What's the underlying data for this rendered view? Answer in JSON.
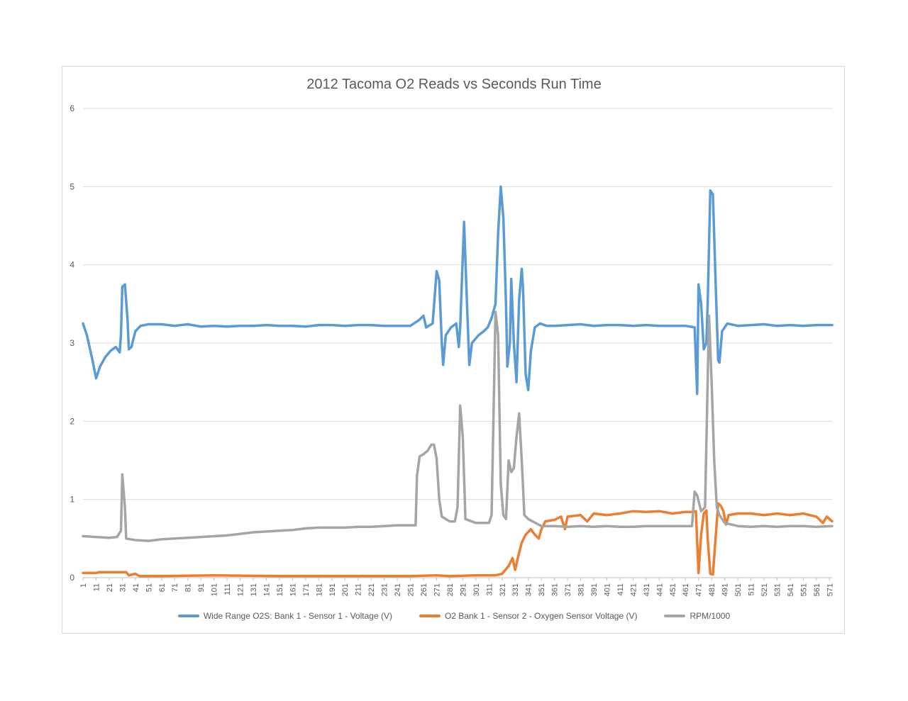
{
  "chart_data": {
    "type": "line",
    "title": "2012 Tacoma O2 Reads vs Seconds Run Time",
    "xlabel": "",
    "ylabel": "",
    "ylim": [
      0,
      6
    ],
    "yticks": [
      "0",
      "1",
      "2",
      "3",
      "4",
      "5",
      "6"
    ],
    "xticks": [
      "1",
      "11",
      "21",
      "31",
      "41",
      "51",
      "61",
      "71",
      "81",
      "91",
      "101",
      "111",
      "121",
      "131",
      "141",
      "151",
      "161",
      "171",
      "181",
      "191",
      "201",
      "211",
      "221",
      "231",
      "241",
      "251",
      "261",
      "271",
      "281",
      "291",
      "301",
      "311",
      "321",
      "331",
      "341",
      "351",
      "361",
      "371",
      "381",
      "391",
      "401",
      "411",
      "421",
      "431",
      "441",
      "451",
      "461",
      "471",
      "481",
      "491",
      "501",
      "511",
      "521",
      "531",
      "541",
      "551",
      "561",
      "571"
    ],
    "xlim": [
      1,
      573
    ],
    "grid": true,
    "legend_position": "bottom",
    "series": [
      {
        "name": "Wide Range O2S: Bank 1 - Sensor 1 - Voltage (V)",
        "color": "#5b9bd5",
        "points": [
          [
            1,
            3.25
          ],
          [
            4,
            3.1
          ],
          [
            8,
            2.8
          ],
          [
            11,
            2.55
          ],
          [
            14,
            2.7
          ],
          [
            18,
            2.82
          ],
          [
            22,
            2.9
          ],
          [
            26,
            2.95
          ],
          [
            29,
            2.88
          ],
          [
            30,
            3.1
          ],
          [
            31,
            3.72
          ],
          [
            33,
            3.75
          ],
          [
            35,
            3.3
          ],
          [
            36,
            2.92
          ],
          [
            38,
            2.95
          ],
          [
            41,
            3.15
          ],
          [
            45,
            3.22
          ],
          [
            51,
            3.24
          ],
          [
            61,
            3.24
          ],
          [
            71,
            3.22
          ],
          [
            81,
            3.24
          ],
          [
            91,
            3.21
          ],
          [
            101,
            3.22
          ],
          [
            111,
            3.21
          ],
          [
            121,
            3.22
          ],
          [
            131,
            3.22
          ],
          [
            141,
            3.23
          ],
          [
            151,
            3.22
          ],
          [
            161,
            3.22
          ],
          [
            171,
            3.21
          ],
          [
            181,
            3.23
          ],
          [
            191,
            3.23
          ],
          [
            201,
            3.22
          ],
          [
            211,
            3.23
          ],
          [
            221,
            3.23
          ],
          [
            231,
            3.22
          ],
          [
            241,
            3.22
          ],
          [
            251,
            3.22
          ],
          [
            258,
            3.3
          ],
          [
            261,
            3.35
          ],
          [
            263,
            3.2
          ],
          [
            268,
            3.25
          ],
          [
            271,
            3.92
          ],
          [
            273,
            3.8
          ],
          [
            275,
            3.0
          ],
          [
            276,
            2.72
          ],
          [
            278,
            3.1
          ],
          [
            282,
            3.2
          ],
          [
            286,
            3.25
          ],
          [
            288,
            2.95
          ],
          [
            289,
            3.2
          ],
          [
            292,
            4.55
          ],
          [
            294,
            3.6
          ],
          [
            296,
            2.72
          ],
          [
            298,
            3.0
          ],
          [
            303,
            3.1
          ],
          [
            307,
            3.15
          ],
          [
            310,
            3.2
          ],
          [
            313,
            3.32
          ],
          [
            316,
            3.5
          ],
          [
            318,
            4.4
          ],
          [
            320,
            5.0
          ],
          [
            322,
            4.6
          ],
          [
            324,
            3.5
          ],
          [
            325,
            2.7
          ],
          [
            327,
            3.0
          ],
          [
            328,
            3.82
          ],
          [
            330,
            3.0
          ],
          [
            332,
            2.5
          ],
          [
            334,
            3.55
          ],
          [
            336,
            3.95
          ],
          [
            337,
            3.7
          ],
          [
            339,
            2.6
          ],
          [
            341,
            2.4
          ],
          [
            343,
            2.9
          ],
          [
            346,
            3.2
          ],
          [
            350,
            3.25
          ],
          [
            355,
            3.22
          ],
          [
            361,
            3.22
          ],
          [
            371,
            3.23
          ],
          [
            381,
            3.24
          ],
          [
            391,
            3.22
          ],
          [
            401,
            3.23
          ],
          [
            411,
            3.23
          ],
          [
            421,
            3.22
          ],
          [
            431,
            3.23
          ],
          [
            441,
            3.22
          ],
          [
            451,
            3.22
          ],
          [
            461,
            3.22
          ],
          [
            468,
            3.2
          ],
          [
            470,
            2.35
          ],
          [
            471,
            3.75
          ],
          [
            473,
            3.5
          ],
          [
            475,
            2.92
          ],
          [
            477,
            3.0
          ],
          [
            478,
            3.5
          ],
          [
            480,
            4.95
          ],
          [
            482,
            4.9
          ],
          [
            484,
            3.8
          ],
          [
            486,
            2.78
          ],
          [
            487,
            2.75
          ],
          [
            489,
            3.15
          ],
          [
            493,
            3.25
          ],
          [
            501,
            3.22
          ],
          [
            511,
            3.23
          ],
          [
            521,
            3.24
          ],
          [
            531,
            3.22
          ],
          [
            541,
            3.23
          ],
          [
            551,
            3.22
          ],
          [
            561,
            3.23
          ],
          [
            573,
            3.23
          ]
        ]
      },
      {
        "name": "O2 Bank 1 - Sensor 2 - Oxygen Sensor Voltage (V)",
        "color": "#ed7d31",
        "points": [
          [
            1,
            0.06
          ],
          [
            11,
            0.06
          ],
          [
            13,
            0.07
          ],
          [
            21,
            0.07
          ],
          [
            31,
            0.07
          ],
          [
            34,
            0.07
          ],
          [
            36,
            0.03
          ],
          [
            41,
            0.05
          ],
          [
            44,
            0.02
          ],
          [
            51,
            0.02
          ],
          [
            61,
            0.02
          ],
          [
            101,
            0.03
          ],
          [
            151,
            0.02
          ],
          [
            201,
            0.02
          ],
          [
            251,
            0.02
          ],
          [
            271,
            0.03
          ],
          [
            281,
            0.02
          ],
          [
            301,
            0.03
          ],
          [
            311,
            0.03
          ],
          [
            316,
            0.03
          ],
          [
            321,
            0.05
          ],
          [
            326,
            0.15
          ],
          [
            329,
            0.25
          ],
          [
            331,
            0.1
          ],
          [
            333,
            0.25
          ],
          [
            336,
            0.45
          ],
          [
            339,
            0.55
          ],
          [
            343,
            0.62
          ],
          [
            346,
            0.55
          ],
          [
            349,
            0.5
          ],
          [
            351,
            0.62
          ],
          [
            354,
            0.72
          ],
          [
            361,
            0.74
          ],
          [
            366,
            0.78
          ],
          [
            369,
            0.62
          ],
          [
            371,
            0.78
          ],
          [
            381,
            0.8
          ],
          [
            386,
            0.72
          ],
          [
            391,
            0.82
          ],
          [
            401,
            0.8
          ],
          [
            411,
            0.82
          ],
          [
            421,
            0.85
          ],
          [
            431,
            0.84
          ],
          [
            441,
            0.85
          ],
          [
            451,
            0.82
          ],
          [
            461,
            0.84
          ],
          [
            466,
            0.84
          ],
          [
            469,
            0.85
          ],
          [
            471,
            0.06
          ],
          [
            473,
            0.55
          ],
          [
            475,
            0.82
          ],
          [
            477,
            0.86
          ],
          [
            478,
            0.5
          ],
          [
            480,
            0.05
          ],
          [
            482,
            0.04
          ],
          [
            484,
            0.5
          ],
          [
            486,
            0.95
          ],
          [
            488,
            0.92
          ],
          [
            490,
            0.85
          ],
          [
            492,
            0.68
          ],
          [
            494,
            0.8
          ],
          [
            501,
            0.82
          ],
          [
            511,
            0.82
          ],
          [
            521,
            0.8
          ],
          [
            531,
            0.82
          ],
          [
            541,
            0.8
          ],
          [
            551,
            0.82
          ],
          [
            561,
            0.78
          ],
          [
            566,
            0.7
          ],
          [
            569,
            0.78
          ],
          [
            573,
            0.72
          ]
        ]
      },
      {
        "name": "RPM/1000",
        "color": "#a5a5a5",
        "points": [
          [
            1,
            0.53
          ],
          [
            11,
            0.52
          ],
          [
            21,
            0.51
          ],
          [
            27,
            0.52
          ],
          [
            30,
            0.6
          ],
          [
            31,
            1.32
          ],
          [
            33,
            0.9
          ],
          [
            34,
            0.5
          ],
          [
            41,
            0.48
          ],
          [
            51,
            0.47
          ],
          [
            61,
            0.49
          ],
          [
            71,
            0.5
          ],
          [
            81,
            0.51
          ],
          [
            91,
            0.52
          ],
          [
            101,
            0.53
          ],
          [
            111,
            0.54
          ],
          [
            121,
            0.56
          ],
          [
            131,
            0.58
          ],
          [
            141,
            0.59
          ],
          [
            151,
            0.6
          ],
          [
            161,
            0.61
          ],
          [
            171,
            0.63
          ],
          [
            181,
            0.64
          ],
          [
            191,
            0.64
          ],
          [
            201,
            0.64
          ],
          [
            211,
            0.65
          ],
          [
            221,
            0.65
          ],
          [
            231,
            0.66
          ],
          [
            241,
            0.67
          ],
          [
            251,
            0.67
          ],
          [
            255,
            0.67
          ],
          [
            256,
            1.3
          ],
          [
            258,
            1.55
          ],
          [
            261,
            1.58
          ],
          [
            264,
            1.62
          ],
          [
            267,
            1.7
          ],
          [
            269,
            1.7
          ],
          [
            271,
            1.52
          ],
          [
            273,
            1.0
          ],
          [
            275,
            0.78
          ],
          [
            281,
            0.72
          ],
          [
            285,
            0.72
          ],
          [
            287,
            0.9
          ],
          [
            289,
            2.2
          ],
          [
            291,
            1.8
          ],
          [
            293,
            0.75
          ],
          [
            301,
            0.7
          ],
          [
            311,
            0.7
          ],
          [
            313,
            0.8
          ],
          [
            316,
            3.4
          ],
          [
            318,
            3.1
          ],
          [
            320,
            1.2
          ],
          [
            322,
            0.8
          ],
          [
            324,
            0.75
          ],
          [
            326,
            1.5
          ],
          [
            328,
            1.35
          ],
          [
            330,
            1.4
          ],
          [
            332,
            1.8
          ],
          [
            334,
            2.1
          ],
          [
            336,
            1.5
          ],
          [
            338,
            0.8
          ],
          [
            341,
            0.75
          ],
          [
            351,
            0.66
          ],
          [
            361,
            0.66
          ],
          [
            371,
            0.65
          ],
          [
            381,
            0.66
          ],
          [
            391,
            0.65
          ],
          [
            401,
            0.66
          ],
          [
            411,
            0.65
          ],
          [
            421,
            0.65
          ],
          [
            431,
            0.66
          ],
          [
            441,
            0.66
          ],
          [
            451,
            0.66
          ],
          [
            461,
            0.66
          ],
          [
            466,
            0.66
          ],
          [
            468,
            1.1
          ],
          [
            470,
            1.05
          ],
          [
            473,
            0.85
          ],
          [
            476,
            0.9
          ],
          [
            479,
            3.35
          ],
          [
            481,
            2.5
          ],
          [
            483,
            1.5
          ],
          [
            485,
            0.9
          ],
          [
            487,
            0.8
          ],
          [
            491,
            0.7
          ],
          [
            501,
            0.66
          ],
          [
            511,
            0.65
          ],
          [
            521,
            0.66
          ],
          [
            531,
            0.65
          ],
          [
            541,
            0.66
          ],
          [
            551,
            0.66
          ],
          [
            561,
            0.65
          ],
          [
            573,
            0.66
          ]
        ]
      }
    ]
  }
}
